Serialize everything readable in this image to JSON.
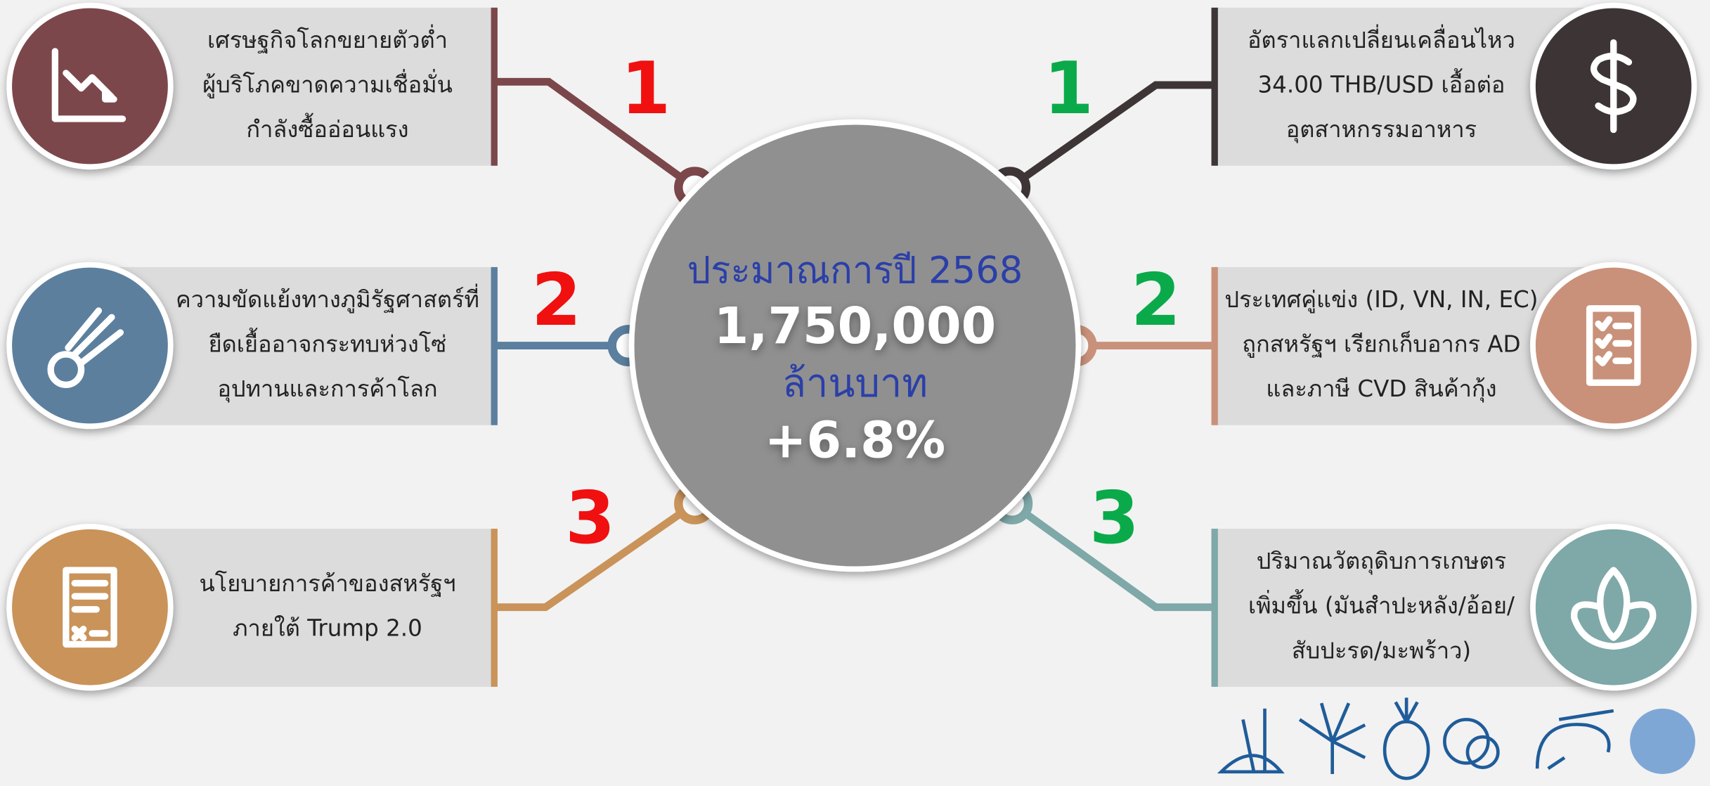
{
  "center": {
    "title": "ประมาณการปี 2568",
    "value": "1,750,000",
    "unit": "ล้านบาท",
    "change": "+6.8%"
  },
  "left": [
    {
      "number": "1",
      "lines": [
        "เศรษฐกิจโลกขยายตัวต่ำ",
        "ผู้บริโภคขาดความเชื่อมั่น",
        "กำลังซื้ออ่อนแรง"
      ]
    },
    {
      "number": "2",
      "lines": [
        "ความขัดแย้งทางภูมิรัฐศาสตร์ที่",
        "ยืดเยื้ออาจกระทบห่วงโซ่",
        "อุปทานและการค้าโลก"
      ]
    },
    {
      "number": "3",
      "lines": [
        "นโยบายการค้าของสหรัฐฯ",
        "ภายใต้ Trump 2.0"
      ]
    }
  ],
  "right": [
    {
      "number": "1",
      "lines": [
        "อัตราแลกเปลี่ยนเคลื่อนไหว",
        "34.00 THB/USD เอื้อต่อ",
        "อุตสาหกรรมอาหาร"
      ]
    },
    {
      "number": "2",
      "lines": [
        "ประเทศคู่แข่ง (ID, VN, IN, EC)",
        "ถูกสหรัฐฯ เรียกเก็บอากร AD",
        "และภาษี CVD สินค้ากุ้ง"
      ]
    },
    {
      "number": "3",
      "lines": [
        "ปริมาณวัตถุดิบการเกษตร",
        "เพิ่มขึ้น (มันสำปะหลัง/อ้อย/",
        "สับปะรด/มะพร้าว)"
      ]
    }
  ]
}
